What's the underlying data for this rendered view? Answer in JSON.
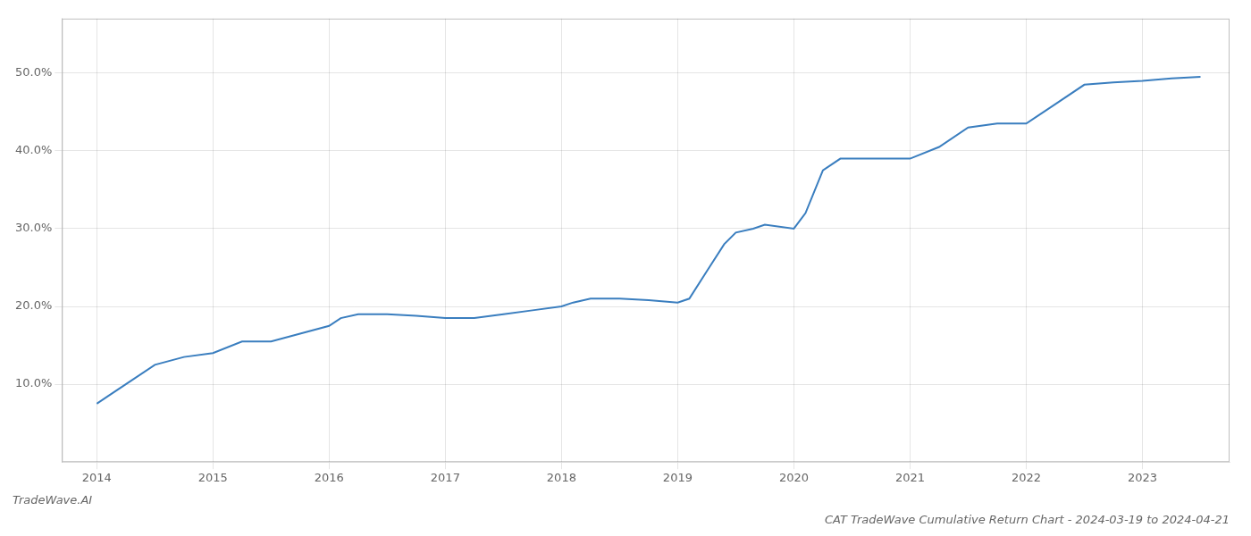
{
  "chart_data": {
    "type": "line",
    "title": "CAT TradeWave Cumulative Return Chart - 2024-03-19 to 2024-04-21",
    "annotations": [
      "TradeWave.AI"
    ],
    "x": [
      2014.0,
      2014.1,
      2014.25,
      2014.5,
      2014.75,
      2015.0,
      2015.25,
      2015.5,
      2015.75,
      2016.0,
      2016.1,
      2016.25,
      2016.5,
      2016.75,
      2017.0,
      2017.25,
      2017.5,
      2017.75,
      2018.0,
      2018.1,
      2018.25,
      2018.5,
      2018.75,
      2019.0,
      2019.1,
      2019.25,
      2019.4,
      2019.5,
      2019.65,
      2019.75,
      2020.0,
      2020.1,
      2020.25,
      2020.4,
      2020.5,
      2020.75,
      2021.0,
      2021.25,
      2021.5,
      2021.75,
      2022.0,
      2022.1,
      2022.25,
      2022.5,
      2022.75,
      2023.0,
      2023.25,
      2023.5
    ],
    "values": [
      7.5,
      8.5,
      10.0,
      12.5,
      13.5,
      14.0,
      15.5,
      15.5,
      16.5,
      17.5,
      18.5,
      19.0,
      19.0,
      18.8,
      18.5,
      18.5,
      19.0,
      19.5,
      20.0,
      20.5,
      21.0,
      21.0,
      20.8,
      20.5,
      21.0,
      24.5,
      28.0,
      29.5,
      30.0,
      30.5,
      30.0,
      32.0,
      37.5,
      39.0,
      39.0,
      39.0,
      39.0,
      40.5,
      43.0,
      43.5,
      43.5,
      44.5,
      46.0,
      48.5,
      48.8,
      49.0,
      49.3,
      49.5
    ],
    "color": "#3a7ebf",
    "xlim": [
      2013.7,
      2023.75
    ],
    "xticks": [
      2014,
      2015,
      2016,
      2017,
      2018,
      2019,
      2020,
      2021,
      2022,
      2023
    ],
    "ylim": [
      0,
      57
    ],
    "yticks": [
      {
        "value": 10.0,
        "label": "10.0%"
      },
      {
        "value": 20.0,
        "label": "20.0%"
      },
      {
        "value": 30.0,
        "label": "30.0%"
      },
      {
        "value": 40.0,
        "label": "40.0%"
      },
      {
        "value": 50.0,
        "label": "50.0%"
      }
    ],
    "grid": true
  }
}
